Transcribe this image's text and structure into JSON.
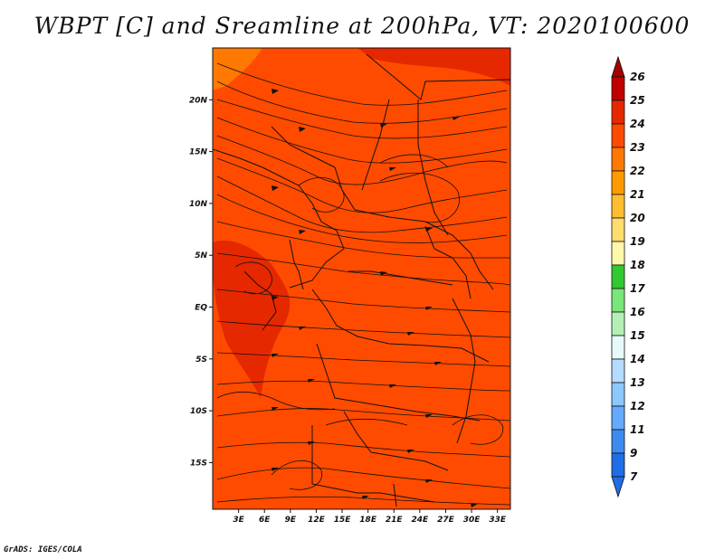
{
  "title": "WBPT [C] and Sreamline at 200hPa, VT: 2020100600",
  "credit": "GrADS: IGES/COLA",
  "map": {
    "lon_ticks": [
      {
        "value": 3,
        "label": "3E"
      },
      {
        "value": 6,
        "label": "6E"
      },
      {
        "value": 9,
        "label": "9E"
      },
      {
        "value": 12,
        "label": "12E"
      },
      {
        "value": 15,
        "label": "15E"
      },
      {
        "value": 18,
        "label": "18E"
      },
      {
        "value": 21,
        "label": "21E"
      },
      {
        "value": 24,
        "label": "24E"
      },
      {
        "value": 27,
        "label": "27E"
      },
      {
        "value": 30,
        "label": "30E"
      },
      {
        "value": 33,
        "label": "33E"
      }
    ],
    "lat_ticks": [
      {
        "value": 20,
        "label": "20N"
      },
      {
        "value": 15,
        "label": "15N"
      },
      {
        "value": 10,
        "label": "10N"
      },
      {
        "value": 5,
        "label": "5N"
      },
      {
        "value": 0,
        "label": "EQ"
      },
      {
        "value": -5,
        "label": "5S"
      },
      {
        "value": -10,
        "label": "10S"
      },
      {
        "value": -15,
        "label": "15S"
      }
    ],
    "lon_range": [
      0,
      34.5
    ],
    "lat_range": [
      -19.5,
      25
    ],
    "field_value_typical": 24
  },
  "colorbar": {
    "levels": [
      {
        "label": "26",
        "color": "#a50000"
      },
      {
        "label": "25",
        "color": "#c00000"
      },
      {
        "label": "24",
        "color": "#e62800"
      },
      {
        "label": "23",
        "color": "#ff4b00"
      },
      {
        "label": "22",
        "color": "#ff7800"
      },
      {
        "label": "21",
        "color": "#ff9b00"
      },
      {
        "label": "20",
        "color": "#ffbe32"
      },
      {
        "label": "19",
        "color": "#ffdc6e"
      },
      {
        "label": "18",
        "color": "#fff8aa"
      },
      {
        "label": "17",
        "color": "#32c832"
      },
      {
        "label": "16",
        "color": "#78e678"
      },
      {
        "label": "15",
        "color": "#b4f0b4"
      },
      {
        "label": "14",
        "color": "#e6fafa"
      },
      {
        "label": "13",
        "color": "#b4dcff"
      },
      {
        "label": "12",
        "color": "#8cc8ff"
      },
      {
        "label": "11",
        "color": "#64aaff"
      },
      {
        "label": "9",
        "color": "#3c8cf0"
      },
      {
        "label": "7",
        "color": "#1e6ee6"
      }
    ],
    "bottom_color": "#1e6ee6"
  }
}
